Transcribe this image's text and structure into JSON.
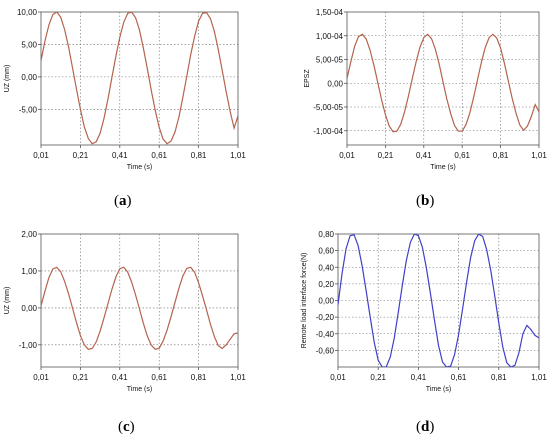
{
  "chart_data": [
    {
      "type": "line",
      "caption_letter": "a",
      "xlabel": "Time (s)",
      "ylabel": "UZ (mm)",
      "xlim": [
        0.01,
        1.01
      ],
      "ylim": [
        -10.5,
        10.0
      ],
      "x_ticks": [
        "0,01",
        "0,21",
        "0,41",
        "0,61",
        "0,81",
        "1,01"
      ],
      "y_ticks": [
        {
          "value": 10.0,
          "label": "10,00"
        },
        {
          "value": 5.0,
          "label": "5,00"
        },
        {
          "value": 0.0,
          "label": "0,00"
        },
        {
          "value": -5.0,
          "label": "-5,00"
        }
      ],
      "grid": true,
      "color": "#b5634e",
      "series": [
        {
          "x": [
            0.01,
            0.03,
            0.05,
            0.07,
            0.09,
            0.11,
            0.13,
            0.15,
            0.17,
            0.19,
            0.21,
            0.23,
            0.25,
            0.27,
            0.29,
            0.31,
            0.33,
            0.35,
            0.37,
            0.39,
            0.41,
            0.43,
            0.45,
            0.47,
            0.49,
            0.51,
            0.53,
            0.55,
            0.57,
            0.59,
            0.61,
            0.63,
            0.65,
            0.67,
            0.69,
            0.71,
            0.73,
            0.75,
            0.77,
            0.79,
            0.81,
            0.83,
            0.85,
            0.87,
            0.89,
            0.91,
            0.93,
            0.95,
            0.97,
            0.99,
            1.01
          ],
          "values": [
            2.5,
            5.5,
            8.0,
            9.6,
            10.0,
            9.2,
            7.3,
            4.6,
            1.4,
            -1.9,
            -5.0,
            -7.7,
            -9.5,
            -10.3,
            -10.0,
            -8.7,
            -6.4,
            -3.4,
            -0.1,
            3.2,
            6.1,
            8.4,
            9.8,
            10.0,
            9.1,
            7.2,
            4.4,
            1.2,
            -2.1,
            -5.2,
            -7.8,
            -9.6,
            -10.3,
            -9.9,
            -8.5,
            -6.2,
            -3.2,
            0.1,
            3.4,
            6.3,
            8.6,
            9.8,
            9.9,
            9.0,
            7.0,
            4.2,
            1.0,
            -2.3,
            -5.3,
            -7.9,
            -6.0
          ]
        }
      ]
    },
    {
      "type": "line",
      "caption_letter": "b",
      "xlabel": "Time (s)",
      "ylabel": "EPSZ",
      "xlim": [
        0.01,
        1.01
      ],
      "ylim": [
        -1.3,
        1.5
      ],
      "x_ticks": [
        "0,01",
        "0,21",
        "0,41",
        "0,61",
        "0,81",
        "1,01"
      ],
      "y_ticks": [
        {
          "value": 1.5,
          "label": "1,50-04"
        },
        {
          "value": 1.0,
          "label": "1,00-04"
        },
        {
          "value": 0.5,
          "label": "5,00-05"
        },
        {
          "value": 0.0,
          "label": "0,00"
        },
        {
          "value": -0.5,
          "label": "-5,00-05"
        },
        {
          "value": -1.0,
          "label": "-1,00-04"
        }
      ],
      "grid": true,
      "color": "#b5634e",
      "series": [
        {
          "x": [
            0.01,
            0.03,
            0.05,
            0.07,
            0.09,
            0.11,
            0.13,
            0.15,
            0.17,
            0.19,
            0.21,
            0.23,
            0.25,
            0.27,
            0.29,
            0.31,
            0.33,
            0.35,
            0.37,
            0.39,
            0.41,
            0.43,
            0.45,
            0.47,
            0.49,
            0.51,
            0.53,
            0.55,
            0.57,
            0.59,
            0.61,
            0.63,
            0.65,
            0.67,
            0.69,
            0.71,
            0.73,
            0.75,
            0.77,
            0.79,
            0.81,
            0.83,
            0.85,
            0.87,
            0.89,
            0.91,
            0.93,
            0.95,
            0.97,
            0.99,
            1.01
          ],
          "values": [
            0.1,
            0.45,
            0.78,
            0.98,
            1.03,
            0.93,
            0.7,
            0.38,
            0.02,
            -0.35,
            -0.66,
            -0.9,
            -1.02,
            -1.01,
            -0.86,
            -0.6,
            -0.27,
            0.1,
            0.45,
            0.76,
            0.96,
            1.03,
            0.94,
            0.72,
            0.4,
            0.03,
            -0.33,
            -0.64,
            -0.89,
            -1.01,
            -1.01,
            -0.87,
            -0.62,
            -0.29,
            0.08,
            0.44,
            0.75,
            0.96,
            1.03,
            0.95,
            0.74,
            0.42,
            0.05,
            -0.31,
            -0.63,
            -0.88,
            -0.99,
            -0.9,
            -0.7,
            -0.45,
            -0.6
          ]
        }
      ]
    },
    {
      "type": "line",
      "caption_letter": "c",
      "xlabel": "Time (s)",
      "ylabel": "UZ (mm)",
      "xlim": [
        0.01,
        1.01
      ],
      "ylim": [
        -1.6,
        2.0
      ],
      "x_ticks": [
        "0,01",
        "0,21",
        "0,41",
        "0,61",
        "0,81",
        "1,01"
      ],
      "y_ticks": [
        {
          "value": 2.0,
          "label": "2,00"
        },
        {
          "value": 1.0,
          "label": "1,00"
        },
        {
          "value": 0.0,
          "label": "0,00"
        },
        {
          "value": -1.0,
          "label": "-1,00"
        }
      ],
      "grid": true,
      "color": "#b5634e",
      "series": [
        {
          "x": [
            0.01,
            0.03,
            0.05,
            0.07,
            0.09,
            0.11,
            0.13,
            0.15,
            0.17,
            0.19,
            0.21,
            0.23,
            0.25,
            0.27,
            0.29,
            0.31,
            0.33,
            0.35,
            0.37,
            0.39,
            0.41,
            0.43,
            0.45,
            0.47,
            0.49,
            0.51,
            0.53,
            0.55,
            0.57,
            0.59,
            0.61,
            0.63,
            0.65,
            0.67,
            0.69,
            0.71,
            0.73,
            0.75,
            0.77,
            0.79,
            0.81,
            0.83,
            0.85,
            0.87,
            0.89,
            0.91,
            0.93,
            0.95,
            0.97,
            0.99,
            1.01
          ],
          "values": [
            0.05,
            0.45,
            0.82,
            1.05,
            1.1,
            0.98,
            0.72,
            0.38,
            0.0,
            -0.4,
            -0.75,
            -1.0,
            -1.12,
            -1.1,
            -0.92,
            -0.63,
            -0.27,
            0.12,
            0.5,
            0.84,
            1.06,
            1.1,
            0.97,
            0.7,
            0.35,
            -0.03,
            -0.42,
            -0.77,
            -1.01,
            -1.12,
            -1.09,
            -0.9,
            -0.6,
            -0.24,
            0.15,
            0.53,
            0.86,
            1.07,
            1.1,
            0.96,
            0.68,
            0.33,
            -0.05,
            -0.44,
            -0.78,
            -1.02,
            -1.1,
            -1.0,
            -0.85,
            -0.7,
            -0.68
          ]
        }
      ]
    },
    {
      "type": "line",
      "caption_letter": "d",
      "xlabel": "Time (s)",
      "ylabel": "Remote load interface force(N)",
      "xlim": [
        0.01,
        1.01
      ],
      "ylim": [
        -0.8,
        0.8
      ],
      "x_ticks": [
        "0,01",
        "0,21",
        "0,41",
        "0,61",
        "0,81",
        "1,01"
      ],
      "y_ticks": [
        {
          "value": 0.8,
          "label": "0,80"
        },
        {
          "value": 0.6,
          "label": "0,60"
        },
        {
          "value": 0.4,
          "label": "0,40"
        },
        {
          "value": 0.2,
          "label": "0,20"
        },
        {
          "value": 0.0,
          "label": "0,00"
        },
        {
          "value": -0.2,
          "label": "-0,20"
        },
        {
          "value": -0.4,
          "label": "-0,40"
        },
        {
          "value": -0.6,
          "label": "-0,60"
        }
      ],
      "grid": true,
      "color": "#4040c8",
      "series": [
        {
          "x": [
            0.01,
            0.03,
            0.05,
            0.07,
            0.09,
            0.11,
            0.13,
            0.15,
            0.17,
            0.19,
            0.21,
            0.23,
            0.25,
            0.27,
            0.29,
            0.31,
            0.33,
            0.35,
            0.37,
            0.39,
            0.41,
            0.43,
            0.45,
            0.47,
            0.49,
            0.51,
            0.53,
            0.55,
            0.57,
            0.59,
            0.61,
            0.63,
            0.65,
            0.67,
            0.69,
            0.71,
            0.73,
            0.75,
            0.77,
            0.79,
            0.81,
            0.83,
            0.85,
            0.87,
            0.89,
            0.91,
            0.93,
            0.95,
            0.97,
            0.99,
            1.01
          ],
          "values": [
            -0.05,
            0.32,
            0.62,
            0.78,
            0.79,
            0.66,
            0.42,
            0.12,
            -0.2,
            -0.5,
            -0.72,
            -0.8,
            -0.8,
            -0.68,
            -0.45,
            -0.14,
            0.18,
            0.48,
            0.7,
            0.8,
            0.78,
            0.64,
            0.39,
            0.08,
            -0.24,
            -0.54,
            -0.74,
            -0.8,
            -0.79,
            -0.65,
            -0.41,
            -0.1,
            0.22,
            0.52,
            0.72,
            0.8,
            0.77,
            0.61,
            0.36,
            0.05,
            -0.27,
            -0.56,
            -0.75,
            -0.8,
            -0.78,
            -0.63,
            -0.4,
            -0.3,
            -0.35,
            -0.42,
            -0.45
          ]
        }
      ]
    }
  ]
}
